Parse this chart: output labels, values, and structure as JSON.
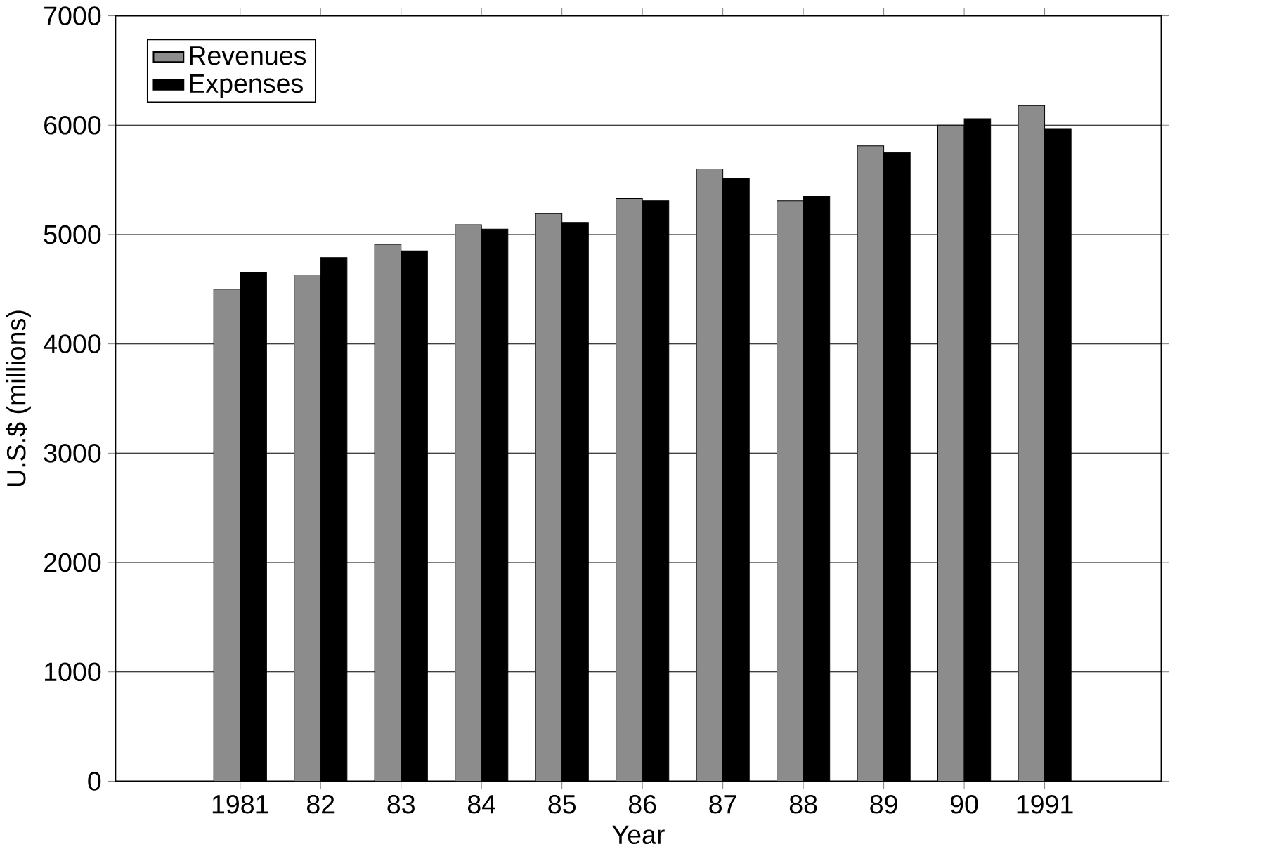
{
  "chart_data": {
    "type": "bar",
    "xlabel": "Year",
    "ylabel": "U.S.$ (millions)",
    "categories": [
      "1981",
      "82",
      "83",
      "84",
      "85",
      "86",
      "87",
      "88",
      "89",
      "90",
      "1991"
    ],
    "series": [
      {
        "name": "Revenues",
        "color": "#8c8c8c",
        "values": [
          4500,
          4630,
          4910,
          5090,
          5190,
          5330,
          5600,
          5310,
          5810,
          6000,
          6180
        ]
      },
      {
        "name": "Expenses",
        "color": "#000000",
        "values": [
          4650,
          4790,
          4850,
          5050,
          5110,
          5310,
          5510,
          5350,
          5750,
          6060,
          5970
        ]
      }
    ],
    "ylim": [
      0,
      7000
    ],
    "yticks": [
      0,
      1000,
      2000,
      3000,
      4000,
      5000,
      6000,
      7000
    ],
    "grid": "y",
    "legend": "top left"
  }
}
